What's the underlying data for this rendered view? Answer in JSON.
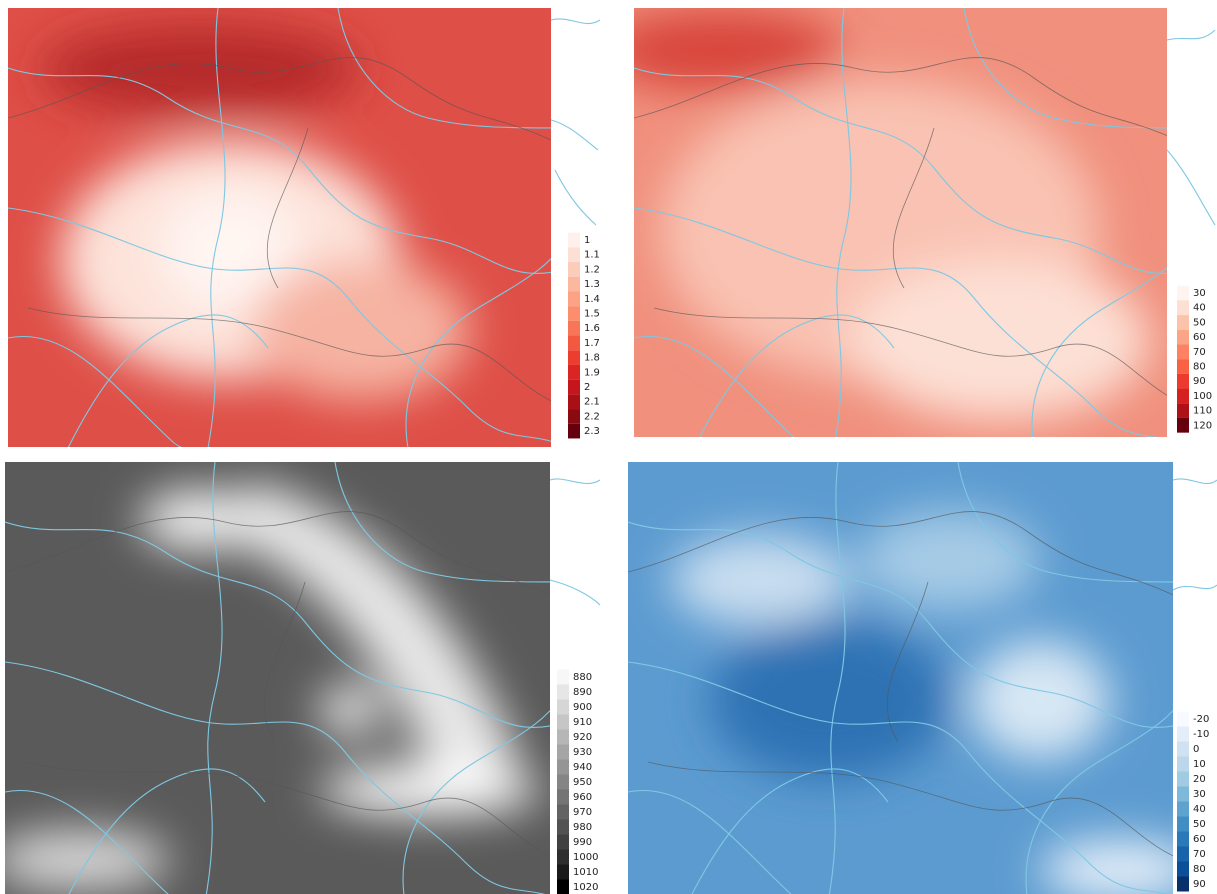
{
  "panels": [
    {
      "legend": [
        1,
        1.1,
        1.2,
        1.3,
        1.4,
        1.5,
        1.6,
        1.7,
        1.8,
        1.9,
        2,
        2.1,
        2.2,
        2.3
      ],
      "colors": [
        "#fff0eb",
        "#fde0d5",
        "#fcccba",
        "#fcb79f",
        "#fca285",
        "#fc8d6d",
        "#f97558",
        "#f4593f",
        "#ec3d2f",
        "#d92523",
        "#c4161c",
        "#a91016",
        "#8b0a12",
        "#67000d"
      ]
    },
    {
      "legend": [
        30,
        40,
        50,
        60,
        70,
        80,
        90,
        100,
        110,
        120
      ],
      "colors": [
        "#fff5f0",
        "#fee0d2",
        "#fcc3ab",
        "#fca486",
        "#fc8262",
        "#f96044",
        "#ee3a2c",
        "#d52221",
        "#ae1117",
        "#67000d"
      ]
    },
    {
      "legend": [
        880,
        890,
        900,
        910,
        920,
        930,
        940,
        950,
        960,
        970,
        980,
        990,
        1000,
        1010,
        1020
      ],
      "colors": [
        "#f7f7f7",
        "#e6e6e6",
        "#d6d6d6",
        "#c6c6c6",
        "#b6b6b6",
        "#a5a5a5",
        "#959595",
        "#858585",
        "#747474",
        "#636363",
        "#525252",
        "#414141",
        "#2e2e2e",
        "#1a1a1a",
        "#000000"
      ]
    },
    {
      "legend": [
        -20,
        -10,
        0,
        10,
        20,
        30,
        40,
        50,
        60,
        70,
        80,
        90
      ],
      "colors": [
        "#f7fbff",
        "#e3eef9",
        "#d0e2f2",
        "#bcd7eb",
        "#a0cbe2",
        "#7fb9da",
        "#5ea3d0",
        "#418ec5",
        "#2a79b9",
        "#1764ab",
        "#0a4f97",
        "#08306b"
      ]
    }
  ]
}
